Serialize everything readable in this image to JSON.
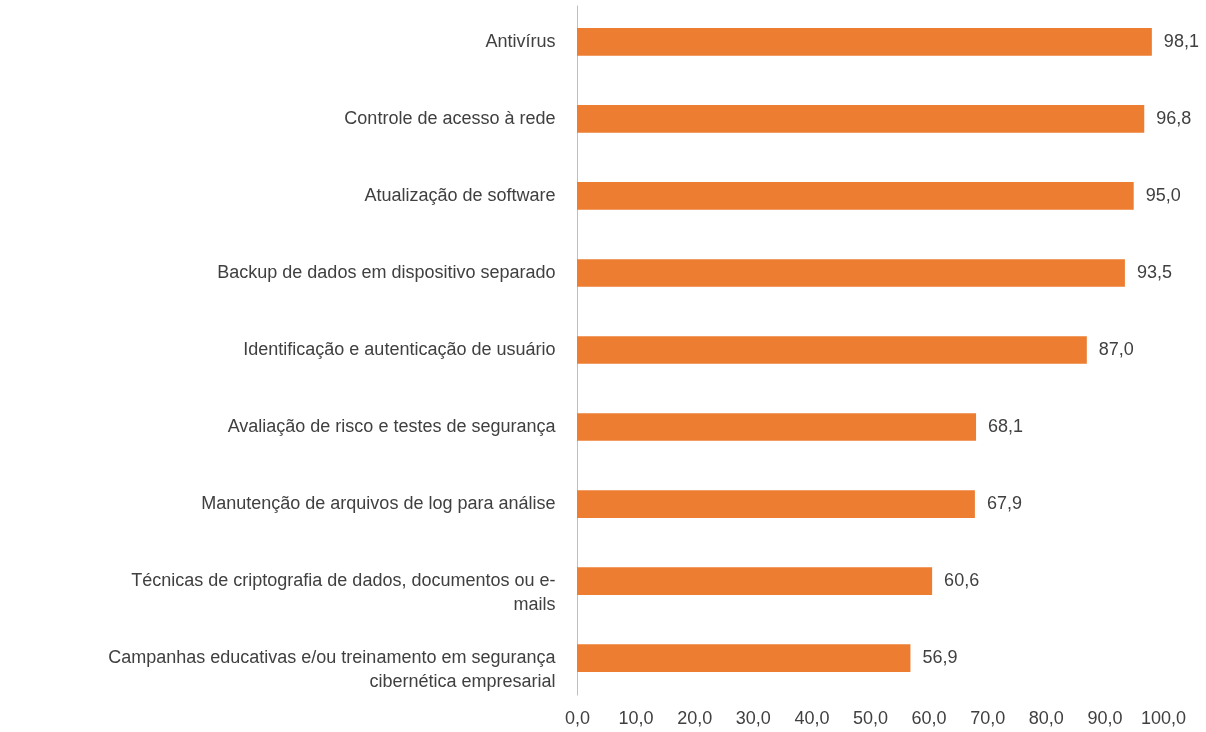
{
  "chart_data": {
    "type": "bar",
    "orientation": "horizontal",
    "categories": [
      "Antivírus",
      "Controle de acesso à rede",
      "Atualização de software",
      "Backup de dados em dispositivo separado",
      "Identificação e autenticação de usuário",
      "Avaliação de risco e testes de segurança",
      "Manutenção de arquivos de log para análise",
      "Técnicas de criptografia de dados, documentos ou e-mails",
      "Campanhas educativas e/ou treinamento em segurança cibernética empresarial"
    ],
    "values": [
      98.1,
      96.8,
      95.0,
      93.5,
      87.0,
      68.1,
      67.9,
      60.6,
      56.9
    ],
    "value_labels": [
      "98,1",
      "96,8",
      "95,0",
      "93,5",
      "87,0",
      "68,1",
      "67,9",
      "60,6",
      "56,9"
    ],
    "color": "#ed7d31",
    "xlim": [
      0,
      100
    ],
    "xticks": [
      {
        "value": 0,
        "label": "0,0"
      },
      {
        "value": 10,
        "label": "10,0"
      },
      {
        "value": 20,
        "label": "20,0"
      },
      {
        "value": 30,
        "label": "30,0"
      },
      {
        "value": 40,
        "label": "40,0"
      },
      {
        "value": 50,
        "label": "50,0"
      },
      {
        "value": 60,
        "label": "60,0"
      },
      {
        "value": 70,
        "label": "70,0"
      },
      {
        "value": 80,
        "label": "80,0"
      },
      {
        "value": 90,
        "label": "90,0"
      },
      {
        "value": 100,
        "label": "100,0"
      }
    ],
    "grid": false
  }
}
